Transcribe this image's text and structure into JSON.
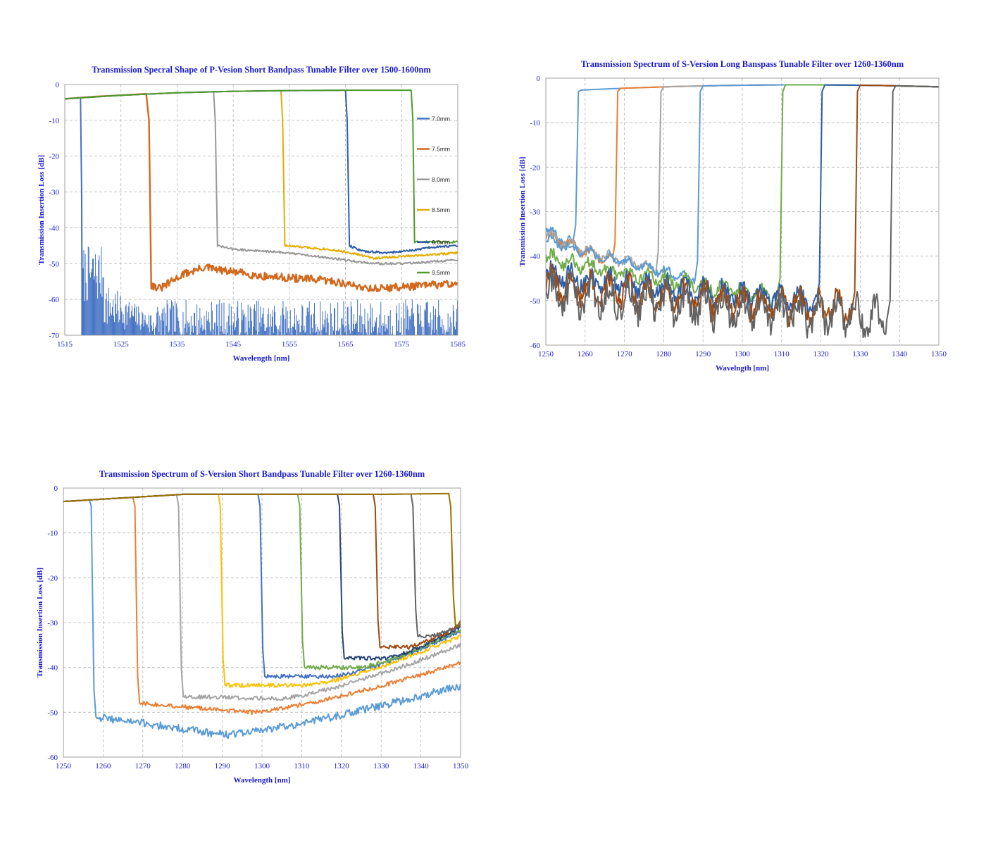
{
  "chart_data": [
    {
      "id": "chart1",
      "type": "line",
      "title": "Transmission Specral Shape of P-Vesion Short Bandpass Tunable Filter over 1500-1600nm",
      "xlabel": "Wavelength [nm]",
      "ylabel": "Transmission Insertion Loss [dB]",
      "xlim": [
        1515,
        1585
      ],
      "ylim": [
        -70,
        0
      ],
      "xticks": [
        1515,
        1525,
        1535,
        1545,
        1555,
        1565,
        1575,
        1585
      ],
      "yticks": [
        0,
        -10,
        -20,
        -30,
        -40,
        -50,
        -60,
        -70
      ],
      "grid": "dashed",
      "legend_position": "right",
      "series": [
        {
          "name": "7.0mm",
          "color": "#4472c4",
          "values": [
            [
              1515,
              -70
            ],
            [
              1516,
              -70
            ],
            [
              1517.6,
              -70
            ]
          ],
          "stem_noise": {
            "x": [
              1518,
              1585
            ],
            "base": -70,
            "peaks_high_x": [
              1518,
              1522
            ],
            "peak_max": -45,
            "peak_tail": -62
          }
        },
        {
          "name": "7.5mm",
          "color": "#d2691e",
          "values": [
            [
              1515,
              -4
            ],
            [
              1520,
              -3.4
            ],
            [
              1525,
              -3
            ],
            [
              1529.5,
              -2.6
            ],
            [
              1530,
              -10
            ],
            [
              1530.4,
              -56
            ],
            [
              1532,
              -57
            ],
            [
              1534,
              -55
            ],
            [
              1536,
              -53
            ],
            [
              1538,
              -52
            ],
            [
              1540,
              -51
            ],
            [
              1543,
              -52
            ],
            [
              1546,
              -52.5
            ],
            [
              1550,
              -53.5
            ],
            [
              1555,
              -54
            ],
            [
              1560,
              -54.5
            ],
            [
              1563,
              -55
            ],
            [
              1566,
              -56
            ],
            [
              1570,
              -57
            ],
            [
              1575,
              -56.5
            ],
            [
              1580,
              -56
            ],
            [
              1585,
              -55.5
            ]
          ]
        },
        {
          "name": "8.0mm",
          "color": "#999999",
          "values": [
            [
              1515,
              -4
            ],
            [
              1525,
              -3
            ],
            [
              1535,
              -2.3
            ],
            [
              1541.5,
              -2
            ],
            [
              1541.8,
              -10
            ],
            [
              1542.2,
              -45
            ],
            [
              1545,
              -46
            ],
            [
              1550,
              -46.5
            ],
            [
              1555,
              -47
            ],
            [
              1560,
              -48
            ],
            [
              1565,
              -49
            ],
            [
              1570,
              -50
            ],
            [
              1575,
              -50
            ],
            [
              1580,
              -49.5
            ],
            [
              1585,
              -49
            ]
          ]
        },
        {
          "name": "8.5mm",
          "color": "#e6ac00",
          "values": [
            [
              1515,
              -4
            ],
            [
              1525,
              -3
            ],
            [
              1535,
              -2.3
            ],
            [
              1545,
              -1.9
            ],
            [
              1553.5,
              -1.7
            ],
            [
              1553.8,
              -10
            ],
            [
              1554.2,
              -45
            ],
            [
              1558,
              -45.5
            ],
            [
              1562,
              -46
            ],
            [
              1566,
              -47
            ],
            [
              1570,
              -48.5
            ],
            [
              1575,
              -48
            ],
            [
              1580,
              -47.5
            ],
            [
              1585,
              -47
            ]
          ]
        },
        {
          "name": "9.0mm",
          "color": "#2e5ea8",
          "values": [
            [
              1515,
              -4
            ],
            [
              1525,
              -3
            ],
            [
              1535,
              -2.3
            ],
            [
              1545,
              -1.9
            ],
            [
              1555,
              -1.7
            ],
            [
              1565,
              -1.6
            ],
            [
              1565.3,
              -10
            ],
            [
              1565.7,
              -45
            ],
            [
              1568,
              -46.5
            ],
            [
              1572,
              -47
            ],
            [
              1576,
              -46.5
            ],
            [
              1580,
              -45.5
            ],
            [
              1585,
              -45
            ]
          ]
        },
        {
          "name": "9.5mm",
          "color": "#4f9a2f",
          "values": [
            [
              1515,
              -4
            ],
            [
              1525,
              -3
            ],
            [
              1535,
              -2.3
            ],
            [
              1545,
              -1.9
            ],
            [
              1555,
              -1.7
            ],
            [
              1565,
              -1.6
            ],
            [
              1576.7,
              -1.6
            ],
            [
              1577.0,
              -10
            ],
            [
              1577.3,
              -44
            ],
            [
              1580,
              -44
            ],
            [
              1585,
              -44
            ]
          ]
        }
      ]
    },
    {
      "id": "chart2",
      "type": "line",
      "title": "Transmission Spectrum of S-Version Long Banspass Tunable Filter over 1260-1360nm",
      "xlabel": "Wavelngth [nm]",
      "ylabel": "Transmission Insertion Loss [dB]",
      "xlim": [
        1250,
        1350
      ],
      "ylim": [
        -60,
        0
      ],
      "xticks": [
        1250,
        1260,
        1270,
        1280,
        1290,
        1300,
        1310,
        1320,
        1330,
        1340,
        1350
      ],
      "yticks": [
        0,
        -10,
        -20,
        -30,
        -40,
        -50,
        -60
      ],
      "grid": "dashed",
      "series": [
        {
          "color": "#5b9bd5",
          "edge": 1257,
          "noise_start": -34,
          "floor": -37,
          "noise_amp": 0.8
        },
        {
          "color": "#ed7d31",
          "edge": 1267,
          "noise_start": -35,
          "floor": -41,
          "noise_amp": 0.8
        },
        {
          "color": "#a5a5a5",
          "edge": 1278,
          "noise_start": -35,
          "floor": -43,
          "noise_amp": 0.8
        },
        {
          "color": "#5b9bd5",
          "edge": 1288,
          "noise_start": -36,
          "floor": -45,
          "noise_amp": 0.8
        },
        {
          "color": "#70ad47",
          "edge": 1309,
          "noise_start": -40,
          "floor": -49,
          "noise_amp": 1.2
        },
        {
          "color": "#2e5ea8",
          "edge": 1319,
          "noise_start": -44,
          "floor": -50,
          "noise_amp": 1.8
        },
        {
          "color": "#9e480e",
          "edge": 1328,
          "noise_start": -46,
          "floor": -52,
          "noise_amp": 2.5
        },
        {
          "color": "#636363",
          "edge": 1337,
          "noise_start": -48,
          "floor": -54,
          "noise_amp": 3.0
        }
      ]
    },
    {
      "id": "chart3",
      "type": "line",
      "title": "Transmission Spectrum of S-Version Short Bandpass Tunable Filter over 1260-1360nm",
      "xlabel": "Wavelength [nm]",
      "ylabel": "Transmission Insertion Loss [dB]",
      "xlim": [
        1250,
        1350
      ],
      "ylim": [
        -60,
        0
      ],
      "xticks": [
        1250,
        1260,
        1270,
        1280,
        1290,
        1300,
        1310,
        1320,
        1330,
        1340,
        1350
      ],
      "yticks": [
        0,
        -10,
        -20,
        -30,
        -40,
        -50,
        -60
      ],
      "grid": "dashed",
      "series": [
        {
          "color": "#5b9bd5",
          "edge": 1257,
          "floor_start": -51,
          "floor_min": -55,
          "floor_end": -44
        },
        {
          "color": "#ed7d31",
          "edge": 1268,
          "floor_start": -48,
          "floor_min": -50,
          "floor_end": -39
        },
        {
          "color": "#a5a5a5",
          "edge": 1279,
          "floor_start": -46.5,
          "floor_min": -47,
          "floor_end": -35
        },
        {
          "color": "#ffc000",
          "edge": 1289.5,
          "floor_start": -44,
          "floor_min": -44,
          "floor_end": -33
        },
        {
          "color": "#4472c4",
          "edge": 1299.5,
          "floor_start": -42,
          "floor_min": -42,
          "floor_end": -32
        },
        {
          "color": "#70ad47",
          "edge": 1309.5,
          "floor_start": -40,
          "floor_min": -40,
          "floor_end": -31.5
        },
        {
          "color": "#264478",
          "edge": 1319.5,
          "floor_start": -38,
          "floor_min": -38,
          "floor_end": -31
        },
        {
          "color": "#9e480e",
          "edge": 1328.5,
          "floor_start": -35.5,
          "floor_min": -35.5,
          "floor_end": -30.5
        },
        {
          "color": "#636363",
          "edge": 1338,
          "floor_start": -33,
          "floor_min": -33,
          "floor_end": -30.5
        },
        {
          "color": "#997300",
          "edge": 1347.5,
          "floor_start": -30.5,
          "floor_min": -30.5,
          "floor_end": -30
        }
      ]
    }
  ]
}
